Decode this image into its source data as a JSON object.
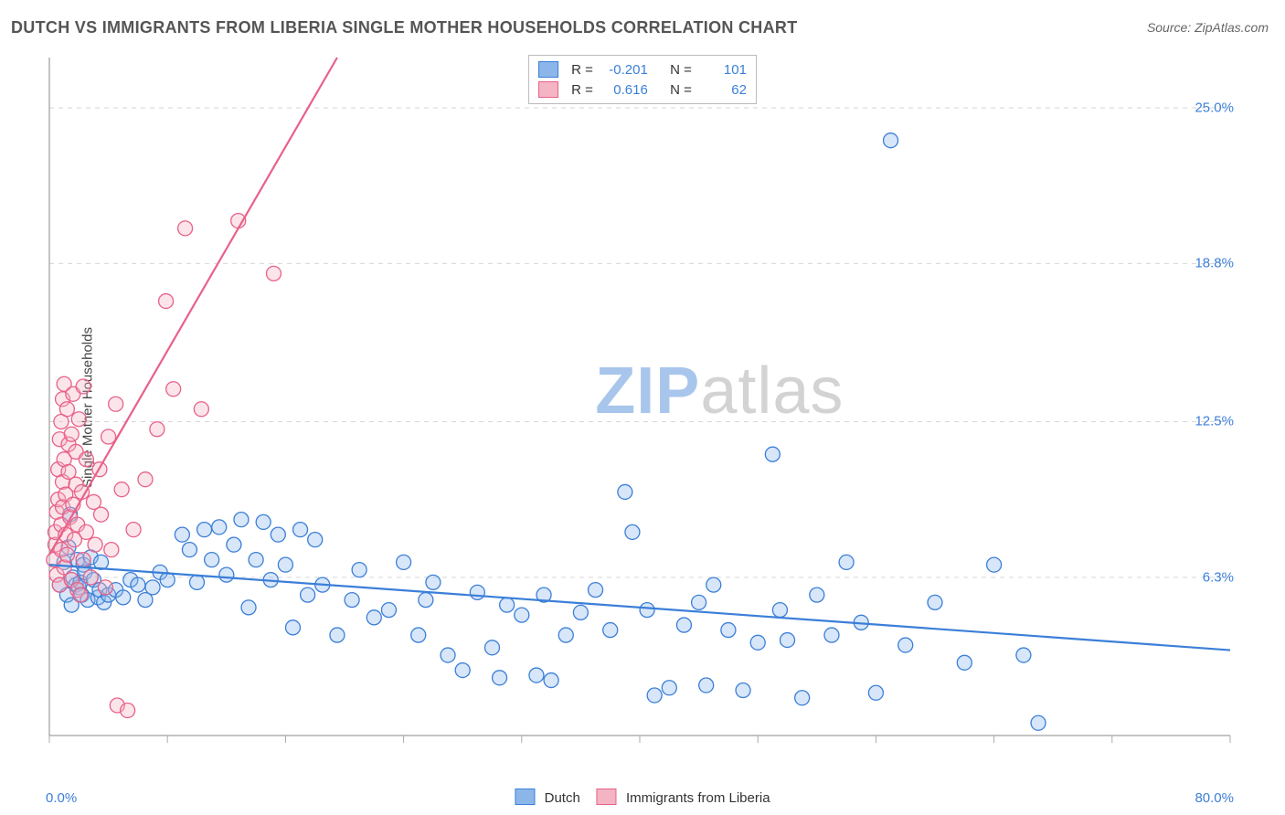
{
  "title": "DUTCH VS IMMIGRANTS FROM LIBERIA SINGLE MOTHER HOUSEHOLDS CORRELATION CHART",
  "source": "Source: ZipAtlas.com",
  "ylabel": "Single Mother Households",
  "watermark_zip": "ZIP",
  "watermark_atlas": "atlas",
  "chart": {
    "type": "scatter",
    "background_color": "#ffffff",
    "grid_color": "#d6d6d6",
    "axis_color": "#888888",
    "tick_color": "#aaaaaa",
    "label_color": "#3b7fd8",
    "xlim": [
      0,
      80
    ],
    "ylim": [
      0,
      27
    ],
    "x_min_label": "0.0%",
    "x_max_label": "80.0%",
    "x_ticks": [
      0,
      8,
      16,
      24,
      32,
      40,
      48,
      56,
      64,
      72,
      80
    ],
    "y_gridlines": [
      6.3,
      12.5,
      18.8,
      25.0
    ],
    "y_tick_labels": [
      "6.3%",
      "12.5%",
      "18.8%",
      "25.0%"
    ],
    "marker_radius": 8,
    "marker_fill_opacity": 0.35,
    "marker_stroke_width": 1.3,
    "trend_line_width": 2.2,
    "series": [
      {
        "name": "Dutch",
        "color_fill": "#8cb6ea",
        "color_stroke": "#3b7fd8",
        "R_label": "R =",
        "R": "-0.201",
        "N_label": "N =",
        "N": "101",
        "trend": {
          "x1": 0,
          "y1": 6.8,
          "x2": 80,
          "y2": 3.4
        },
        "points": [
          [
            0.7,
            6.0
          ],
          [
            1.0,
            6.9
          ],
          [
            1.2,
            5.6
          ],
          [
            1.3,
            7.5
          ],
          [
            1.4,
            8.8
          ],
          [
            1.5,
            5.2
          ],
          [
            1.6,
            6.3
          ],
          [
            1.8,
            6.0
          ],
          [
            1.9,
            7.0
          ],
          [
            2.0,
            5.9
          ],
          [
            2.1,
            6.1
          ],
          [
            2.2,
            5.6
          ],
          [
            2.3,
            6.8
          ],
          [
            2.4,
            6.5
          ],
          [
            2.6,
            5.4
          ],
          [
            2.8,
            7.1
          ],
          [
            3.0,
            6.2
          ],
          [
            3.3,
            5.5
          ],
          [
            3.4,
            5.8
          ],
          [
            3.5,
            6.9
          ],
          [
            3.7,
            5.3
          ],
          [
            4.0,
            5.6
          ],
          [
            4.5,
            5.8
          ],
          [
            5.0,
            5.5
          ],
          [
            5.5,
            6.2
          ],
          [
            6.0,
            6.0
          ],
          [
            6.5,
            5.4
          ],
          [
            7.0,
            5.9
          ],
          [
            7.5,
            6.5
          ],
          [
            8.0,
            6.2
          ],
          [
            9.0,
            8.0
          ],
          [
            9.5,
            7.4
          ],
          [
            10.0,
            6.1
          ],
          [
            10.5,
            8.2
          ],
          [
            11.0,
            7.0
          ],
          [
            11.5,
            8.3
          ],
          [
            12.0,
            6.4
          ],
          [
            12.5,
            7.6
          ],
          [
            13.0,
            8.6
          ],
          [
            13.5,
            5.1
          ],
          [
            14.0,
            7.0
          ],
          [
            14.5,
            8.5
          ],
          [
            15.0,
            6.2
          ],
          [
            15.5,
            8.0
          ],
          [
            16.0,
            6.8
          ],
          [
            16.5,
            4.3
          ],
          [
            17.0,
            8.2
          ],
          [
            17.5,
            5.6
          ],
          [
            18.0,
            7.8
          ],
          [
            18.5,
            6.0
          ],
          [
            19.5,
            4.0
          ],
          [
            20.5,
            5.4
          ],
          [
            21.0,
            6.6
          ],
          [
            22.0,
            4.7
          ],
          [
            23.0,
            5.0
          ],
          [
            24.0,
            6.9
          ],
          [
            25.0,
            4.0
          ],
          [
            25.5,
            5.4
          ],
          [
            26.0,
            6.1
          ],
          [
            27.0,
            3.2
          ],
          [
            28.0,
            2.6
          ],
          [
            29.0,
            5.7
          ],
          [
            30.0,
            3.5
          ],
          [
            30.5,
            2.3
          ],
          [
            31.0,
            5.2
          ],
          [
            32.0,
            4.8
          ],
          [
            33.0,
            2.4
          ],
          [
            33.5,
            5.6
          ],
          [
            34.0,
            2.2
          ],
          [
            35.0,
            4.0
          ],
          [
            36.0,
            4.9
          ],
          [
            37.0,
            5.8
          ],
          [
            38.0,
            4.2
          ],
          [
            39.0,
            9.7
          ],
          [
            39.5,
            8.1
          ],
          [
            40.5,
            5.0
          ],
          [
            41.0,
            1.6
          ],
          [
            42.0,
            1.9
          ],
          [
            43.0,
            4.4
          ],
          [
            44.0,
            5.3
          ],
          [
            44.5,
            2.0
          ],
          [
            45.0,
            6.0
          ],
          [
            46.0,
            4.2
          ],
          [
            47.0,
            1.8
          ],
          [
            48.0,
            3.7
          ],
          [
            49.0,
            11.2
          ],
          [
            49.5,
            5.0
          ],
          [
            50.0,
            3.8
          ],
          [
            51.0,
            1.5
          ],
          [
            52.0,
            5.6
          ],
          [
            53.0,
            4.0
          ],
          [
            54.0,
            6.9
          ],
          [
            55.0,
            4.5
          ],
          [
            56.0,
            1.7
          ],
          [
            57.0,
            23.7
          ],
          [
            58.0,
            3.6
          ],
          [
            60.0,
            5.3
          ],
          [
            62.0,
            2.9
          ],
          [
            64.0,
            6.8
          ],
          [
            66.0,
            3.2
          ],
          [
            67.0,
            0.5
          ]
        ]
      },
      {
        "name": "Immigrants from Liberia",
        "color_fill": "#f4b4c4",
        "color_stroke": "#e86189",
        "R_label": "R =",
        "R": "0.616",
        "N_label": "N =",
        "N": "62",
        "trend": {
          "x1": 0,
          "y1": 7.2,
          "x2": 19.5,
          "y2": 27.0
        },
        "points": [
          [
            0.3,
            7.0
          ],
          [
            0.4,
            7.6
          ],
          [
            0.4,
            8.1
          ],
          [
            0.5,
            6.4
          ],
          [
            0.5,
            8.9
          ],
          [
            0.6,
            9.4
          ],
          [
            0.6,
            10.6
          ],
          [
            0.7,
            6.0
          ],
          [
            0.7,
            11.8
          ],
          [
            0.8,
            7.4
          ],
          [
            0.8,
            8.4
          ],
          [
            0.8,
            12.5
          ],
          [
            0.9,
            9.1
          ],
          [
            0.9,
            10.1
          ],
          [
            0.9,
            13.4
          ],
          [
            1.0,
            6.7
          ],
          [
            1.0,
            11.0
          ],
          [
            1.0,
            14.0
          ],
          [
            1.1,
            8.0
          ],
          [
            1.1,
            9.6
          ],
          [
            1.2,
            13.0
          ],
          [
            1.2,
            7.2
          ],
          [
            1.3,
            10.5
          ],
          [
            1.3,
            11.6
          ],
          [
            1.4,
            8.7
          ],
          [
            1.5,
            6.2
          ],
          [
            1.5,
            12.0
          ],
          [
            1.6,
            9.2
          ],
          [
            1.6,
            13.6
          ],
          [
            1.7,
            7.8
          ],
          [
            1.8,
            10.0
          ],
          [
            1.8,
            11.3
          ],
          [
            1.9,
            5.8
          ],
          [
            1.9,
            8.4
          ],
          [
            2.0,
            12.6
          ],
          [
            2.1,
            5.6
          ],
          [
            2.2,
            9.7
          ],
          [
            2.3,
            7.0
          ],
          [
            2.3,
            13.9
          ],
          [
            2.5,
            8.1
          ],
          [
            2.5,
            11.0
          ],
          [
            2.8,
            6.3
          ],
          [
            3.0,
            9.3
          ],
          [
            3.1,
            7.6
          ],
          [
            3.4,
            10.6
          ],
          [
            3.5,
            8.8
          ],
          [
            3.8,
            5.9
          ],
          [
            4.0,
            11.9
          ],
          [
            4.2,
            7.4
          ],
          [
            4.5,
            13.2
          ],
          [
            4.6,
            1.2
          ],
          [
            4.9,
            9.8
          ],
          [
            5.3,
            1.0
          ],
          [
            5.7,
            8.2
          ],
          [
            6.5,
            10.2
          ],
          [
            7.3,
            12.2
          ],
          [
            7.9,
            17.3
          ],
          [
            8.4,
            13.8
          ],
          [
            9.2,
            20.2
          ],
          [
            10.3,
            13.0
          ],
          [
            12.8,
            20.5
          ],
          [
            15.2,
            18.4
          ]
        ]
      }
    ]
  },
  "legend_bottom": {
    "series1": "Dutch",
    "series2": "Immigrants from Liberia"
  }
}
